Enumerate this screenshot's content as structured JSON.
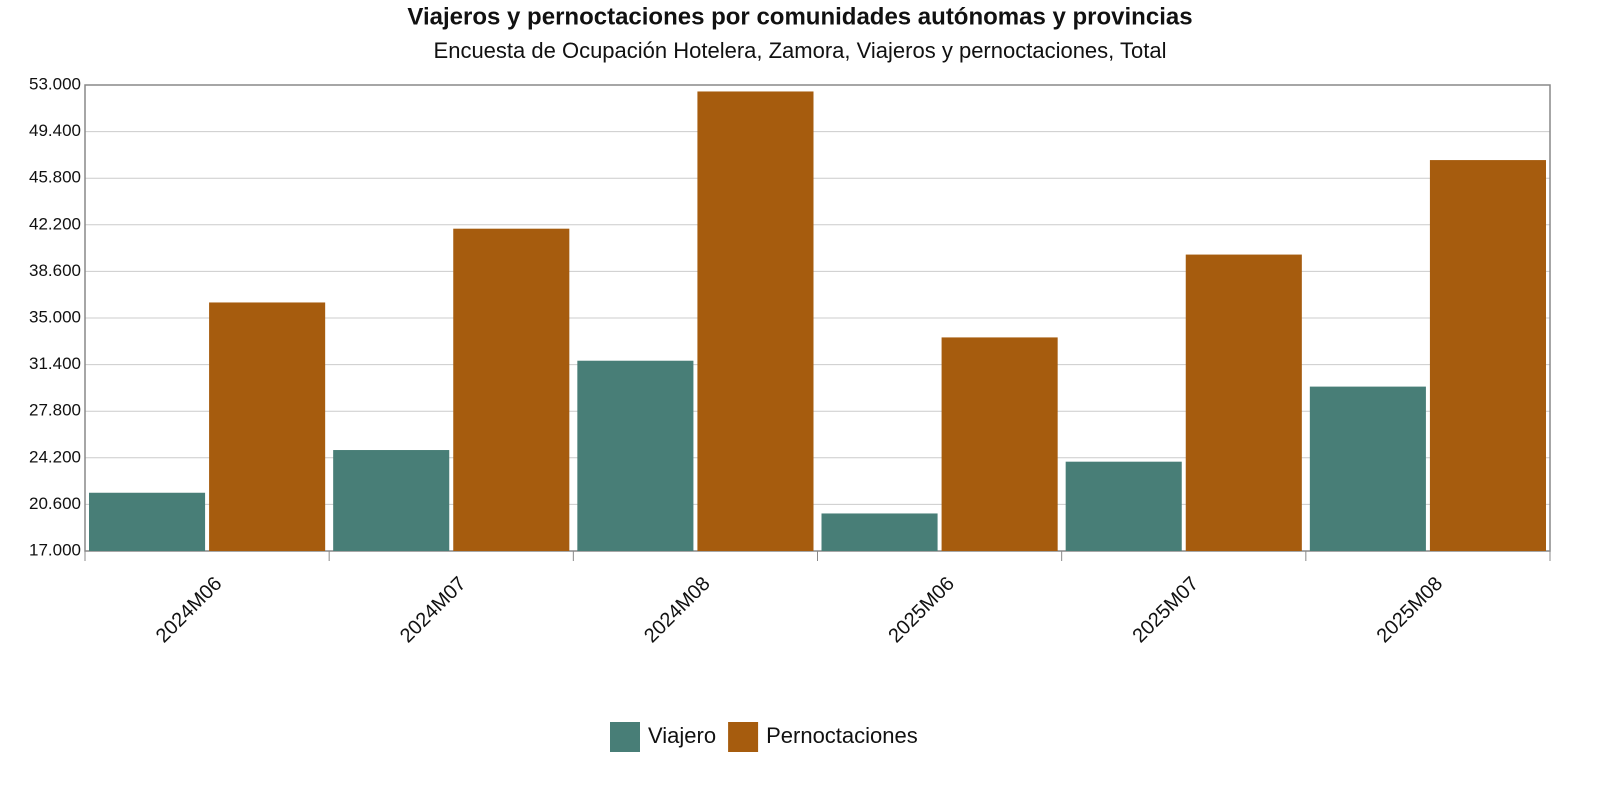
{
  "chart_data": {
    "type": "bar",
    "title": "Viajeros y pernoctaciones por comunidades autónomas y provincias",
    "subtitle": "Encuesta de Ocupación Hotelera, Zamora, Viajeros y pernoctaciones, Total",
    "categories": [
      "2024M06",
      "2024M07",
      "2024M08",
      "2025M06",
      "2025M07",
      "2025M08"
    ],
    "series": [
      {
        "name": "Viajero",
        "color": "#487e77",
        "values": [
          21500,
          24800,
          31700,
          19900,
          23900,
          29700
        ]
      },
      {
        "name": "Pernoctaciones",
        "color": "#a65c0e",
        "values": [
          36200,
          41900,
          52500,
          33500,
          39900,
          47200
        ]
      }
    ],
    "ylim": [
      17000,
      53000
    ],
    "yticks": [
      {
        "value": 17000,
        "label": "17.000"
      },
      {
        "value": 20600,
        "label": "20.600"
      },
      {
        "value": 24200,
        "label": "24.200"
      },
      {
        "value": 27800,
        "label": "27.800"
      },
      {
        "value": 31400,
        "label": "31.400"
      },
      {
        "value": 35000,
        "label": "35.000"
      },
      {
        "value": 38600,
        "label": "38.600"
      },
      {
        "value": 42200,
        "label": "42.200"
      },
      {
        "value": 45800,
        "label": "45.800"
      },
      {
        "value": 49400,
        "label": "49.400"
      },
      {
        "value": 53000,
        "label": "53.000"
      }
    ],
    "grid": true,
    "legend": "bottom"
  }
}
